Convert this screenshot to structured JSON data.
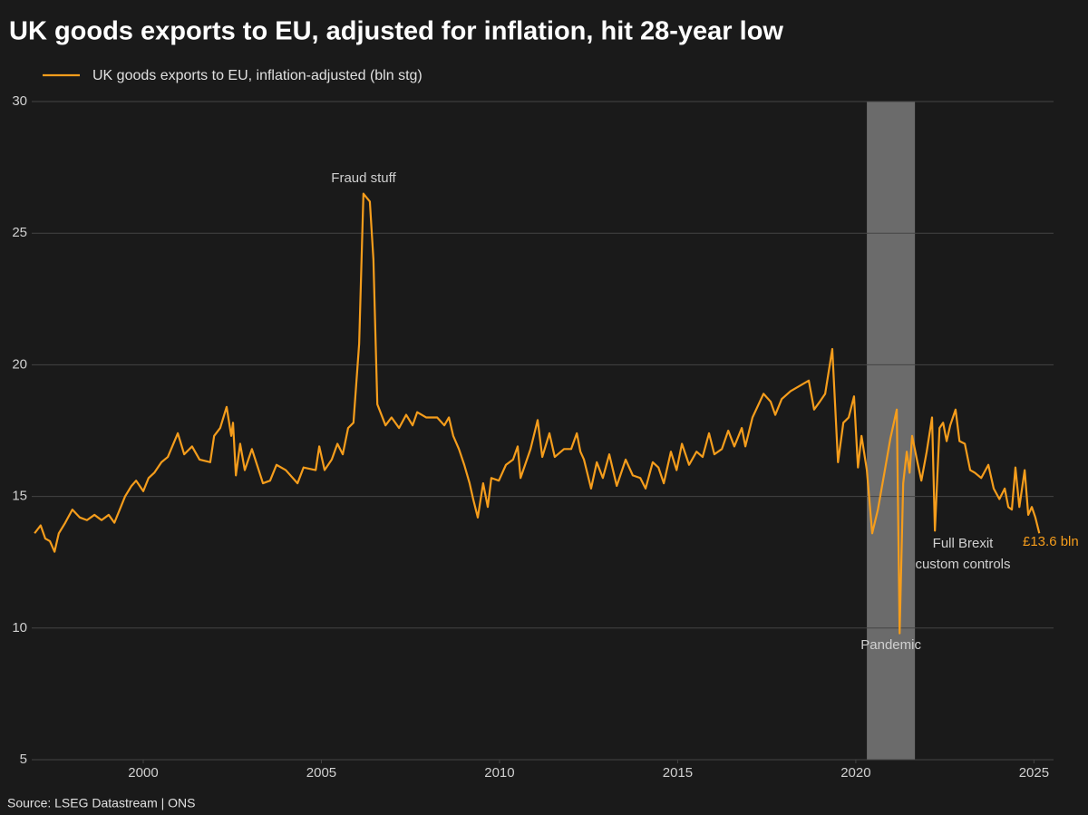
{
  "chart_data": {
    "type": "line",
    "title": "UK goods exports to EU, adjusted for inflation, hit 28-year low",
    "x": [
      1996.95,
      1997.12,
      1997.25,
      1997.38,
      1997.51,
      1997.63,
      1997.81,
      1998.01,
      1998.22,
      1998.42,
      1998.63,
      1998.83,
      1999.03,
      1999.19,
      1999.34,
      1999.49,
      1999.67,
      1999.8,
      2000.0,
      2000.15,
      2000.31,
      2000.51,
      2000.69,
      2000.97,
      2001.15,
      2001.37,
      2001.58,
      2001.88,
      2001.99,
      2002.16,
      2002.34,
      2002.47,
      2002.52,
      2002.6,
      2002.72,
      2002.85,
      2003.05,
      2003.36,
      2003.56,
      2003.74,
      2004.0,
      2004.33,
      2004.5,
      2004.84,
      2004.94,
      2005.09,
      2005.29,
      2005.45,
      2005.6,
      2005.75,
      2005.9,
      2006.06,
      2006.18,
      2006.36,
      2006.46,
      2006.57,
      2006.8,
      2006.97,
      2007.18,
      2007.38,
      2007.56,
      2007.69,
      2007.94,
      2008.25,
      2008.45,
      2008.58,
      2008.7,
      2008.86,
      2009.01,
      2009.16,
      2009.26,
      2009.39,
      2009.54,
      2009.67,
      2009.77,
      2009.98,
      2010.18,
      2010.38,
      2010.51,
      2010.59,
      2010.87,
      2011.07,
      2011.2,
      2011.4,
      2011.55,
      2011.81,
      2012.01,
      2012.17,
      2012.27,
      2012.37,
      2012.57,
      2012.73,
      2012.9,
      2013.08,
      2013.29,
      2013.54,
      2013.74,
      2013.95,
      2014.1,
      2014.3,
      2014.46,
      2014.61,
      2014.81,
      2014.97,
      2015.12,
      2015.32,
      2015.53,
      2015.7,
      2015.88,
      2016.03,
      2016.24,
      2016.42,
      2016.59,
      2016.8,
      2016.9,
      2017.1,
      2017.41,
      2017.61,
      2017.74,
      2017.92,
      2018.17,
      2018.68,
      2018.83,
      2018.99,
      2019.14,
      2019.34,
      2019.5,
      2019.65,
      2019.8,
      2019.95,
      2020.06,
      2020.16,
      2020.31,
      2020.46,
      2020.62,
      2020.79,
      2020.97,
      2021.15,
      2021.23,
      2021.33,
      2021.43,
      2021.51,
      2021.58,
      2021.73,
      2021.84,
      2021.99,
      2022.14,
      2022.22,
      2022.35,
      2022.45,
      2022.55,
      2022.65,
      2022.8,
      2022.91,
      2023.06,
      2023.21,
      2023.34,
      2023.52,
      2023.72,
      2023.87,
      2024.03,
      2024.18,
      2024.28,
      2024.38,
      2024.48,
      2024.59,
      2024.74,
      2024.84,
      2024.94,
      2025.04,
      2025.15
    ],
    "series": [
      {
        "name": "UK goods exports to EU, inflation-adjusted (bln stg)",
        "color": "#f59d1c",
        "values": [
          13.6,
          13.9,
          13.4,
          13.3,
          12.9,
          13.6,
          14.0,
          14.5,
          14.2,
          14.1,
          14.3,
          14.1,
          14.3,
          14.0,
          14.5,
          15.0,
          15.4,
          15.6,
          15.2,
          15.7,
          15.9,
          16.3,
          16.5,
          17.4,
          16.6,
          16.9,
          16.4,
          16.3,
          17.3,
          17.6,
          18.4,
          17.3,
          17.8,
          15.8,
          17.0,
          16.0,
          16.8,
          15.5,
          15.6,
          16.2,
          16.0,
          15.5,
          16.1,
          16.0,
          16.9,
          16.0,
          16.4,
          17.0,
          16.6,
          17.6,
          17.8,
          20.8,
          26.5,
          26.2,
          24.0,
          18.5,
          17.7,
          18.0,
          17.6,
          18.1,
          17.7,
          18.2,
          18.0,
          18.0,
          17.7,
          18.0,
          17.3,
          16.8,
          16.2,
          15.5,
          14.9,
          14.2,
          15.5,
          14.6,
          15.7,
          15.6,
          16.2,
          16.4,
          16.9,
          15.7,
          16.8,
          17.9,
          16.5,
          17.4,
          16.5,
          16.8,
          16.8,
          17.4,
          16.7,
          16.4,
          15.3,
          16.3,
          15.7,
          16.6,
          15.4,
          16.4,
          15.8,
          15.7,
          15.3,
          16.3,
          16.1,
          15.5,
          16.7,
          16.0,
          17.0,
          16.2,
          16.7,
          16.5,
          17.4,
          16.6,
          16.8,
          17.5,
          16.9,
          17.6,
          16.9,
          18.0,
          18.9,
          18.6,
          18.1,
          18.7,
          19.0,
          19.4,
          18.3,
          18.6,
          18.9,
          20.6,
          16.3,
          17.8,
          18.0,
          18.8,
          16.1,
          17.3,
          16.0,
          13.6,
          14.5,
          15.8,
          17.2,
          18.3,
          9.8,
          15.5,
          16.7,
          15.9,
          17.3,
          16.3,
          15.6,
          16.7,
          18.0,
          13.7,
          17.6,
          17.8,
          17.1,
          17.7,
          18.3,
          17.1,
          17.0,
          16.0,
          15.9,
          15.7,
          16.2,
          15.3,
          14.9,
          15.3,
          14.6,
          14.5,
          16.1,
          14.6,
          16.0,
          14.3,
          14.6,
          14.2,
          13.6
        ]
      }
    ],
    "xlim": [
      1996.87,
      2025.55
    ],
    "ylim": [
      5,
      30
    ],
    "xticks": [
      2000,
      2005,
      2010,
      2015,
      2020,
      2025
    ],
    "yticks": [
      5,
      10,
      15,
      20,
      25,
      30
    ],
    "grid": true,
    "shaded_regions": [
      {
        "x": [
          2020.31,
          2021.66
        ],
        "label": "Pandemic",
        "color": "#6b6b6b"
      }
    ],
    "annotations": [
      "Fraud stuff",
      "Full Brexit",
      "custom controls"
    ],
    "end_label": "£13.6 bln",
    "source": "Source: LSEG Datastream | ONS"
  }
}
